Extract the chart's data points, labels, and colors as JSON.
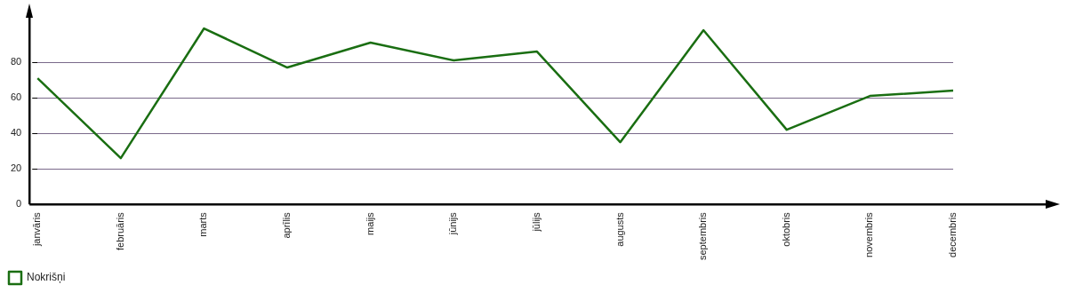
{
  "chart_data": {
    "type": "line",
    "categories": [
      "janvāris",
      "februāris",
      "marts",
      "aprīlis",
      "maijs",
      "jūnijs",
      "jūlijs",
      "augusts",
      "septembris",
      "oktobris",
      "novembris",
      "decembris"
    ],
    "series": [
      {
        "name": "Nokrišņi",
        "color": "#1a6e12",
        "values": [
          71,
          26,
          99,
          77,
          91,
          81,
          86,
          35,
          98,
          42,
          61,
          64
        ]
      }
    ],
    "ylim": [
      0,
      105
    ],
    "yticks": [
      0,
      20,
      40,
      60,
      80
    ],
    "grid": "y",
    "legend": "bottom left",
    "marker": "none",
    "line_style": "solid"
  }
}
